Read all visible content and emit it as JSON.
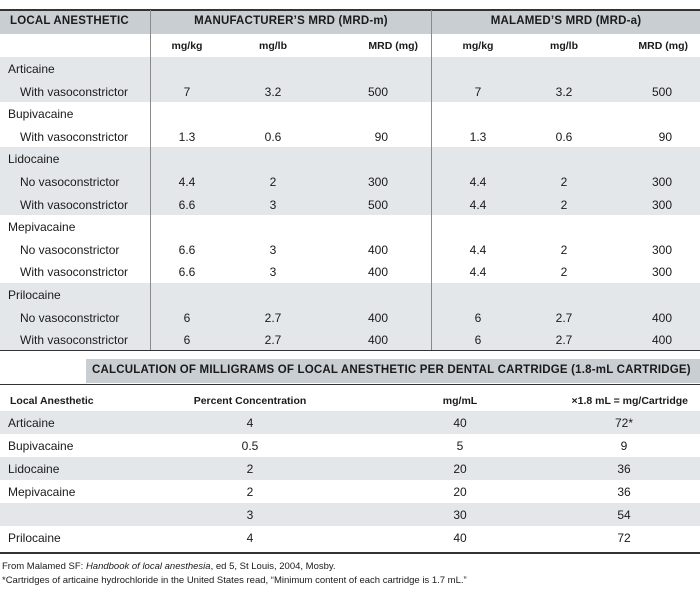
{
  "mrd": {
    "headers": {
      "agent": "LOCAL ANESTHETIC",
      "manufacturer": "MANUFACTURER’S MRD (MRD-m)",
      "malamed": "MALAMED’S MRD (MRD-a)"
    },
    "subheaders": [
      "mg/kg",
      "mg/lb",
      "MRD (mg)",
      "mg/kg",
      "mg/lb",
      "MRD (mg)"
    ],
    "rows": [
      {
        "label": "Articaine",
        "indent": false,
        "values": [
          "",
          "",
          "",
          "",
          "",
          ""
        ]
      },
      {
        "label": "With vasoconstrictor",
        "indent": true,
        "values": [
          "7",
          "3.2",
          "500",
          "7",
          "3.2",
          "500"
        ]
      },
      {
        "label": "Bupivacaine",
        "indent": false,
        "values": [
          "",
          "",
          "",
          "",
          "",
          ""
        ]
      },
      {
        "label": "With vasoconstrictor",
        "indent": true,
        "values": [
          "1.3",
          "0.6",
          "90",
          "1.3",
          "0.6",
          "90"
        ]
      },
      {
        "label": "Lidocaine",
        "indent": false,
        "values": [
          "",
          "",
          "",
          "",
          "",
          ""
        ]
      },
      {
        "label": "No vasoconstrictor",
        "indent": true,
        "values": [
          "4.4",
          "2",
          "300",
          "4.4",
          "2",
          "300"
        ]
      },
      {
        "label": "With vasoconstrictor",
        "indent": true,
        "values": [
          "6.6",
          "3",
          "500",
          "4.4",
          "2",
          "300"
        ]
      },
      {
        "label": "Mepivacaine",
        "indent": false,
        "values": [
          "",
          "",
          "",
          "",
          "",
          ""
        ]
      },
      {
        "label": "No vasoconstrictor",
        "indent": true,
        "values": [
          "6.6",
          "3",
          "400",
          "4.4",
          "2",
          "300"
        ]
      },
      {
        "label": "With vasoconstrictor",
        "indent": true,
        "values": [
          "6.6",
          "3",
          "400",
          "4.4",
          "2",
          "300"
        ]
      },
      {
        "label": "Prilocaine",
        "indent": false,
        "values": [
          "",
          "",
          "",
          "",
          "",
          ""
        ]
      },
      {
        "label": "No vasoconstrictor",
        "indent": true,
        "values": [
          "6",
          "2.7",
          "400",
          "6",
          "2.7",
          "400"
        ]
      },
      {
        "label": "With vasoconstrictor",
        "indent": true,
        "values": [
          "6",
          "2.7",
          "400",
          "6",
          "2.7",
          "400"
        ]
      }
    ]
  },
  "cartridge": {
    "title": "CALCULATION OF MILLIGRAMS OF LOCAL ANESTHETIC PER DENTAL CARTRIDGE (1.8-mL CARTRIDGE)",
    "headers": [
      "Local Anesthetic",
      "Percent Concentration",
      "mg/mL",
      "×1.8 mL = mg/Cartridge"
    ],
    "rows": [
      [
        "Articaine",
        "4",
        "40",
        "72*"
      ],
      [
        "Bupivacaine",
        "0.5",
        "5",
        "9"
      ],
      [
        "Lidocaine",
        "2",
        "20",
        "36"
      ],
      [
        "Mepivacaine",
        "2",
        "20",
        "36"
      ],
      [
        "",
        "3",
        "30",
        "54"
      ],
      [
        "Prilocaine",
        "4",
        "40",
        "72"
      ]
    ]
  },
  "footnotes": {
    "source_prefix": "From Malamed SF: ",
    "source_title": "Handbook of local anesthesia",
    "source_suffix": ", ed 5, St Louis, 2004, Mosby.",
    "note": "*Cartridges of articaine hydrochloride in the United States read, “Minimum content of each cartridge is 1.7 mL.”"
  }
}
